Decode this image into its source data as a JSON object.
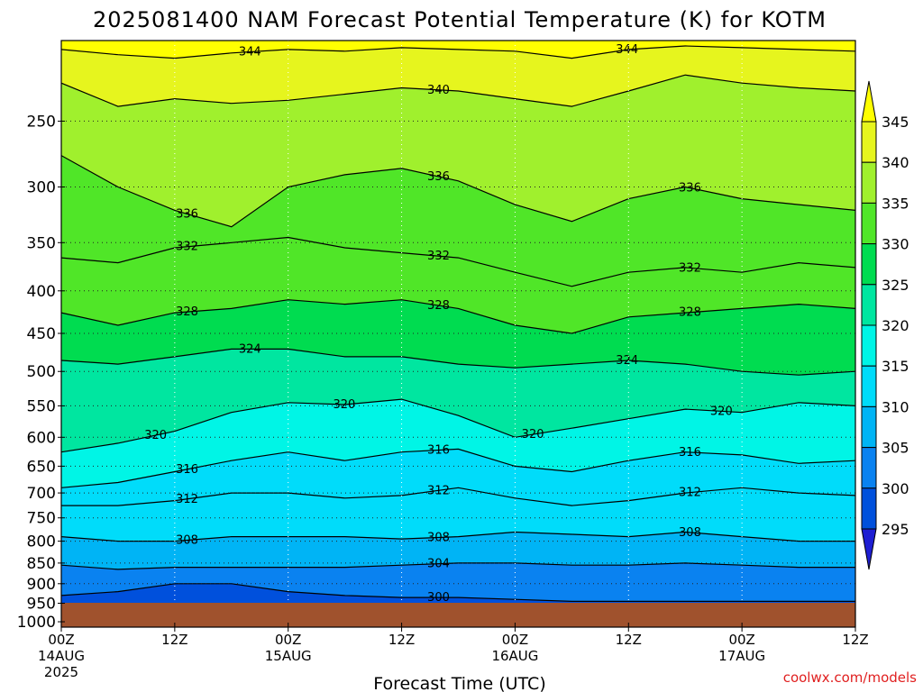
{
  "chart_data": {
    "type": "heatmap",
    "title": "2025081400 NAM Forecast Potential Temperature (K) for KOTM",
    "xlabel": "Forecast Time (UTC)",
    "credit": "coolwx.com/models",
    "x_ticks": [
      {
        "hour": 0,
        "lines": [
          "00Z",
          "14AUG",
          "2025"
        ]
      },
      {
        "hour": 12,
        "lines": [
          "12Z"
        ]
      },
      {
        "hour": 24,
        "lines": [
          "00Z",
          "15AUG"
        ]
      },
      {
        "hour": 36,
        "lines": [
          "12Z"
        ]
      },
      {
        "hour": 48,
        "lines": [
          "00Z",
          "16AUG"
        ]
      },
      {
        "hour": 60,
        "lines": [
          "12Z"
        ]
      },
      {
        "hour": 72,
        "lines": [
          "00Z",
          "17AUG"
        ]
      },
      {
        "hour": 84,
        "lines": [
          "12Z"
        ]
      }
    ],
    "xlim": [
      0,
      84
    ],
    "y_ticks": [
      250,
      300,
      350,
      400,
      450,
      500,
      550,
      600,
      650,
      700,
      750,
      800,
      850,
      900,
      950,
      1000
    ],
    "ylim": [
      200,
      1000
    ],
    "y_scale": "log-pressure, inverted",
    "grid": true,
    "surface_fill_color": "#a0522d",
    "colorbar": {
      "labels": [
        "295",
        "300",
        "305",
        "310",
        "315",
        "320",
        "325",
        "330",
        "335",
        "340",
        "345"
      ],
      "levels": [
        295,
        300,
        305,
        310,
        315,
        320,
        325,
        330,
        335,
        340,
        345
      ],
      "colors": [
        "#1e1ed2",
        "#0050dc",
        "#0a82f0",
        "#00b4f5",
        "#00dcfa",
        "#00f5e6",
        "#00e6a0",
        "#00dc50",
        "#50e628",
        "#a0f02d",
        "#e6f51e",
        "#ffff00"
      ],
      "position": "right"
    },
    "contour_interval": 4,
    "contour_labels": [
      "344",
      "344",
      "340",
      "336",
      "336",
      "336",
      "332",
      "332",
      "332",
      "328",
      "328",
      "328",
      "324",
      "324",
      "320",
      "320",
      "320",
      "320",
      "316",
      "316",
      "316",
      "312",
      "312",
      "312",
      "308",
      "308",
      "308",
      "304",
      "300"
    ],
    "series": [
      {
        "name": "320",
        "pressure": [
          625,
          610,
          590,
          560,
          545,
          548,
          540,
          565,
          600,
          585,
          570,
          555,
          560,
          545,
          550,
          585
        ]
      },
      {
        "name": "316",
        "pressure": [
          690,
          680,
          660,
          640,
          625,
          640,
          625,
          620,
          650,
          660,
          640,
          625,
          630,
          645,
          640,
          640
        ]
      },
      {
        "name": "312",
        "pressure": [
          725,
          725,
          715,
          700,
          700,
          710,
          705,
          690,
          710,
          725,
          715,
          700,
          690,
          700,
          705,
          695
        ]
      }
    ],
    "x": [
      0,
      6,
      12,
      18,
      24,
      30,
      36,
      42,
      48,
      54,
      60,
      66,
      72,
      78,
      84,
      90
    ],
    "isentropes": [
      {
        "theta": 344,
        "pressure": [
          205,
          208,
          210,
          207,
          205,
          206,
          204,
          205,
          206,
          210,
          205,
          203,
          204,
          205,
          206,
          206
        ]
      },
      {
        "theta": 340,
        "pressure": [
          225,
          240,
          235,
          238,
          236,
          232,
          228,
          230,
          235,
          240,
          230,
          220,
          225,
          228,
          230,
          230
        ]
      },
      {
        "theta": 336,
        "pressure": [
          275,
          300,
          320,
          335,
          300,
          290,
          285,
          295,
          315,
          330,
          310,
          300,
          310,
          315,
          320,
          320
        ]
      },
      {
        "theta": 332,
        "pressure": [
          365,
          370,
          355,
          350,
          345,
          355,
          360,
          365,
          380,
          395,
          380,
          375,
          380,
          370,
          375,
          375
        ]
      },
      {
        "theta": 328,
        "pressure": [
          425,
          440,
          425,
          420,
          410,
          415,
          410,
          420,
          440,
          450,
          430,
          425,
          420,
          415,
          420,
          420
        ]
      },
      {
        "theta": 324,
        "pressure": [
          485,
          490,
          480,
          470,
          470,
          480,
          480,
          490,
          495,
          490,
          485,
          490,
          500,
          505,
          500,
          500
        ]
      },
      {
        "theta": 308,
        "pressure": [
          790,
          800,
          800,
          790,
          790,
          790,
          795,
          790,
          780,
          785,
          790,
          780,
          790,
          800,
          800,
          800
        ]
      },
      {
        "theta": 304,
        "pressure": [
          855,
          865,
          860,
          860,
          860,
          860,
          855,
          850,
          850,
          855,
          855,
          850,
          855,
          860,
          860,
          860
        ]
      },
      {
        "theta": 300,
        "pressure": [
          930,
          920,
          900,
          900,
          920,
          930,
          935,
          935,
          940,
          945,
          945,
          945,
          945,
          945,
          945,
          945
        ]
      }
    ]
  }
}
